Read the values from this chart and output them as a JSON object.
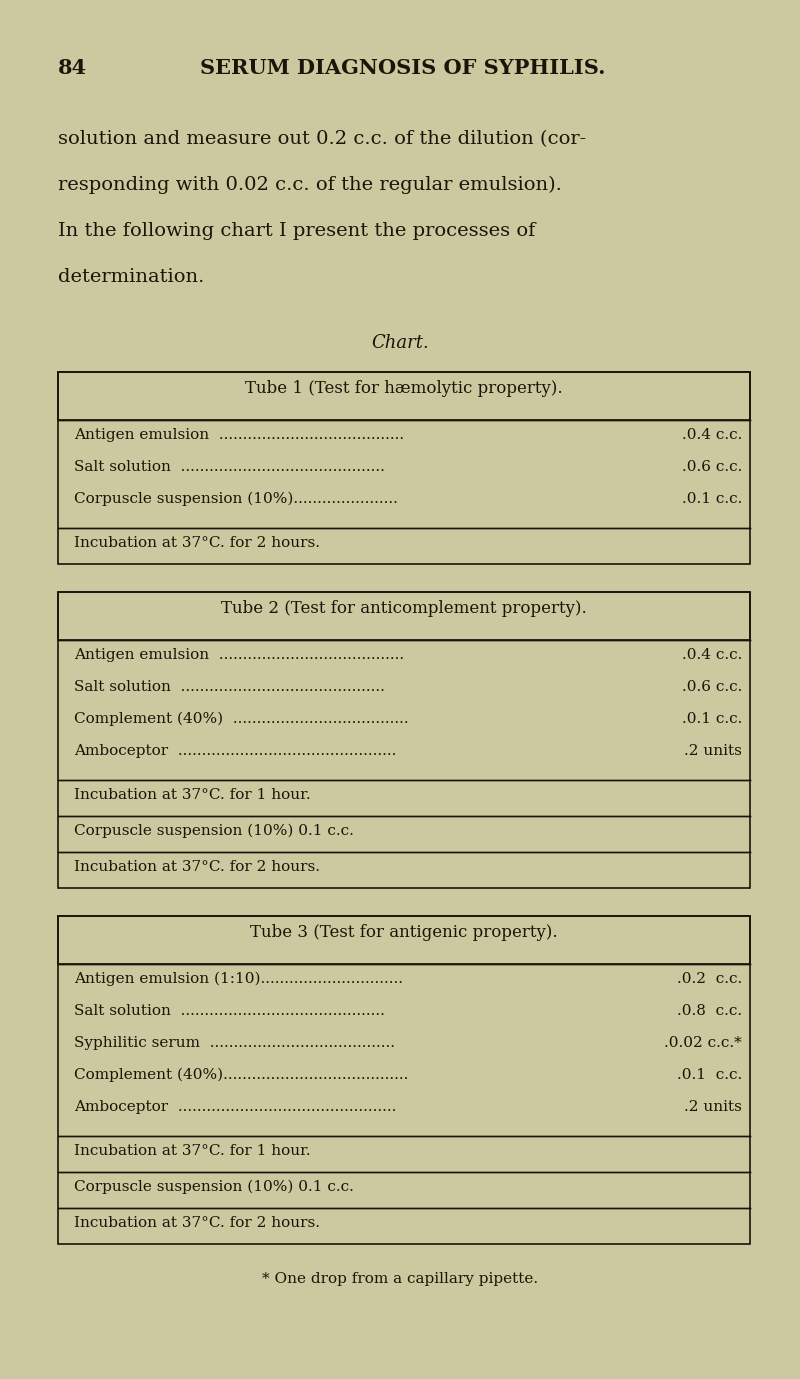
{
  "bg_color": "#ccc8a0",
  "text_color": "#1a1508",
  "page_number": "84",
  "page_title": "SERUM DIAGNOSIS OF SYPHILIS.",
  "intro_lines": [
    "solution and measure out 0.2 c.c. of the dilution (cor-",
    "responding with 0.02 c.c. of the regular emulsion).",
    "In the following chart I present the processes of",
    "determination."
  ],
  "chart_label": "Chart.",
  "tube1_title": "Tube 1 (Test for hæmolytic property).",
  "tube1_items": [
    [
      "Antigen emulsion  .......................................",
      ".0.4 c.c."
    ],
    [
      "Salt solution  ...........................................",
      ".0.6 c.c."
    ],
    [
      "Corpuscle suspension (10%)......................",
      ".0.1 c.c."
    ]
  ],
  "tube1_rows": [
    "Incubation at 37°C. for 2 hours."
  ],
  "tube2_title": "Tube 2 (Test for anticomplement property).",
  "tube2_items": [
    [
      "Antigen emulsion  .......................................",
      ".0.4 c.c."
    ],
    [
      "Salt solution  ...........................................",
      ".0.6 c.c."
    ],
    [
      "Complement (40%)  .....................................",
      ".0.1 c.c."
    ],
    [
      "Amboceptor  ..............................................",
      ".2 units"
    ]
  ],
  "tube2_rows": [
    "Incubation at 37°C. for 1 hour.",
    "Corpuscle suspension (10%) 0.1 c.c.",
    "Incubation at 37°C. for 2 hours."
  ],
  "tube3_title": "Tube 3 (Test for antigenic property).",
  "tube3_items": [
    [
      "Antigen emulsion (1:10)..............................",
      ".0.2  c.c."
    ],
    [
      "Salt solution  ...........................................",
      ".0.8  c.c."
    ],
    [
      "Syphilitic serum  .......................................",
      ".0.02 c.c.*"
    ],
    [
      "Complement (40%).......................................",
      ".0.1  c.c."
    ],
    [
      "Amboceptor  ..............................................",
      ".2 units"
    ]
  ],
  "tube3_rows": [
    "Incubation at 37°C. for 1 hour.",
    "Corpuscle suspension (10%) 0.1 c.c.",
    "Incubation at 37°C. for 2 hours."
  ],
  "footnote": "* One drop from a capillary pipette.",
  "figw": 8.0,
  "figh": 13.79,
  "dpi": 100
}
